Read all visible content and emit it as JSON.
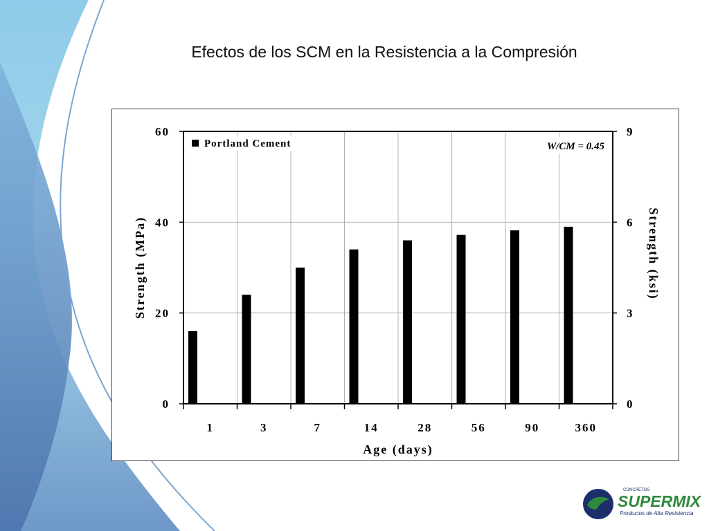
{
  "slide": {
    "title": "Efectos de los SCM en la Resistencia a la Compresión"
  },
  "colors": {
    "bar": "#000000",
    "grid": "#b0b0b0",
    "decor_light": "#9fd0ea",
    "decor_dark": "#5b83b8",
    "logo_green": "#2f8a3c",
    "logo_navy": "#1d2f6b"
  },
  "chart_data": {
    "type": "bar",
    "categories": [
      "1",
      "3",
      "7",
      "14",
      "28",
      "56",
      "90",
      "360"
    ],
    "series": [
      {
        "name": "Portland Cement",
        "values": [
          16,
          24,
          30,
          34,
          36,
          37.2,
          38.2,
          39
        ]
      }
    ],
    "xlabel": "Age (days)",
    "ylabel": "Strength (MPa)",
    "ylabel_right": "Strength (ksi)",
    "ylim": [
      0,
      60
    ],
    "yticks": [
      "0",
      "20",
      "40",
      "60"
    ],
    "ylim_right": [
      0,
      9
    ],
    "yticks_right": [
      "0",
      "3",
      "6",
      "9"
    ],
    "annotation": "W/CM = 0.45",
    "legend": "top-left",
    "grid": true
  },
  "logo": {
    "small_text": "CONCRETOS",
    "brand": "SUPERMIX",
    "tagline": "Productos de Alta Resistencia"
  }
}
